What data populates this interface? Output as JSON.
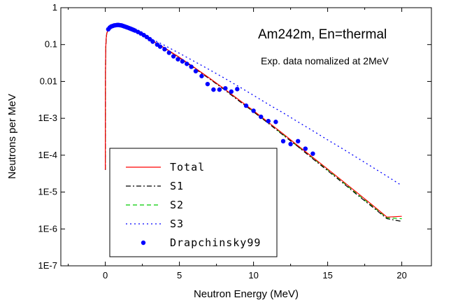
{
  "chart_data": {
    "type": "line",
    "xlabel": "Neutron Energy (MeV)",
    "ylabel": "Neutrons per MeV",
    "xlim": [
      -3,
      22
    ],
    "ylim_log10": [
      -7,
      0
    ],
    "log_y": true,
    "x_ticks": [
      "0",
      "5",
      "10",
      "15",
      "20"
    ],
    "x_tick_values": [
      0,
      5,
      10,
      15,
      20
    ],
    "y_ticks": [
      "1",
      "0.1",
      "0.01",
      "1E-3",
      "1E-4",
      "1E-5",
      "1E-6",
      "1E-7"
    ],
    "y_tick_values": [
      1,
      0.1,
      0.01,
      0.001,
      0.0001,
      1e-05,
      1e-06,
      1e-07
    ],
    "annotations": [
      "Am242m, En=thermal",
      "Exp. data nomalized at 2MeV"
    ],
    "legend_position": "lower-left",
    "series": [
      {
        "name": "Total",
        "style": "solid",
        "color": "#ff0000",
        "x": [
          0.0,
          0.01,
          0.03,
          0.06,
          0.1,
          0.2,
          0.4,
          0.7,
          1.0,
          1.5,
          2,
          3,
          4,
          5,
          6,
          7,
          8,
          9,
          10,
          11,
          12,
          13,
          14,
          15,
          16,
          17,
          18,
          19,
          20
        ],
        "y": [
          4e-05,
          0.012,
          0.08,
          0.15,
          0.2,
          0.26,
          0.31,
          0.33,
          0.32,
          0.28,
          0.23,
          0.14,
          0.081,
          0.045,
          0.024,
          0.0125,
          0.0064,
          0.0032,
          0.0016,
          0.00078,
          0.00038,
          0.00018,
          8.7e-05,
          4.2e-05,
          2e-05,
          9.5e-06,
          4.5e-06,
          2.1e-06,
          2.2e-06
        ]
      },
      {
        "name": "S1",
        "style": "dashdot",
        "color": "#000000",
        "x": [
          0.0,
          0.01,
          0.03,
          0.06,
          0.1,
          0.2,
          0.4,
          0.7,
          1.0,
          1.5,
          2,
          3,
          4,
          5,
          6,
          7,
          8,
          9,
          10,
          11,
          12,
          13,
          14,
          15,
          16,
          17,
          18,
          19,
          20
        ],
        "y": [
          4e-05,
          0.012,
          0.08,
          0.15,
          0.2,
          0.26,
          0.31,
          0.33,
          0.32,
          0.28,
          0.23,
          0.14,
          0.08,
          0.044,
          0.023,
          0.012,
          0.0061,
          0.003,
          0.0015,
          0.00073,
          0.00035,
          0.00017,
          8e-05,
          3.8e-05,
          1.8e-05,
          8.4e-06,
          4e-06,
          1.9e-06,
          1.6e-06
        ]
      },
      {
        "name": "S2",
        "style": "dashed",
        "color": "#00cc00",
        "x": [
          0.0,
          0.01,
          0.03,
          0.06,
          0.1,
          0.2,
          0.4,
          0.7,
          1.0,
          1.5,
          2,
          3,
          4,
          5,
          6,
          7,
          8,
          9,
          10,
          11,
          12,
          13,
          14,
          15,
          16,
          17,
          18,
          19,
          20
        ],
        "y": [
          4e-05,
          0.012,
          0.08,
          0.15,
          0.2,
          0.26,
          0.31,
          0.33,
          0.32,
          0.28,
          0.23,
          0.14,
          0.081,
          0.045,
          0.024,
          0.0124,
          0.0063,
          0.0031,
          0.0015,
          0.00075,
          0.00036,
          0.00017,
          8.3e-05,
          4e-05,
          1.9e-05,
          8.8e-06,
          4.2e-06,
          2e-06,
          1.9e-06
        ]
      },
      {
        "name": "S3",
        "style": "dotted",
        "color": "#0000ff",
        "x": [
          0.0,
          0.01,
          0.03,
          0.06,
          0.1,
          0.2,
          0.4,
          0.7,
          1.0,
          1.5,
          2,
          3,
          4,
          5,
          6,
          7,
          8,
          9,
          10,
          11,
          12,
          13,
          14,
          15,
          16,
          17,
          18,
          19,
          20
        ],
        "y": [
          4e-05,
          0.012,
          0.08,
          0.15,
          0.2,
          0.26,
          0.31,
          0.33,
          0.32,
          0.28,
          0.23,
          0.15,
          0.095,
          0.058,
          0.035,
          0.021,
          0.0125,
          0.0073,
          0.0042,
          0.0024,
          0.0014,
          0.0008,
          0.00046,
          0.00026,
          0.00015,
          8.5e-05,
          4.8e-05,
          2.7e-05,
          1.5e-05
        ]
      },
      {
        "name": "Drapchinsky99",
        "style": "markers",
        "color": "#0000ff",
        "x": [
          0.2,
          0.3,
          0.4,
          0.5,
          0.6,
          0.7,
          0.8,
          0.9,
          1.0,
          1.1,
          1.2,
          1.3,
          1.4,
          1.5,
          1.6,
          1.7,
          1.8,
          1.9,
          2.0,
          2.2,
          2.4,
          2.6,
          2.8,
          3.0,
          3.2,
          3.5,
          3.7,
          4.0,
          4.3,
          4.6,
          4.9,
          5.2,
          5.5,
          5.8,
          6.1,
          6.5,
          6.9,
          7.3,
          7.7,
          8.1,
          8.5,
          8.9,
          9.5,
          10.0,
          10.5,
          11.0,
          11.5,
          12.0,
          12.5,
          13.0,
          13.5,
          14.0
        ],
        "y": [
          0.26,
          0.29,
          0.31,
          0.32,
          0.33,
          0.335,
          0.34,
          0.34,
          0.335,
          0.33,
          0.32,
          0.31,
          0.3,
          0.29,
          0.28,
          0.27,
          0.26,
          0.25,
          0.24,
          0.22,
          0.2,
          0.18,
          0.16,
          0.14,
          0.12,
          0.1,
          0.088,
          0.075,
          0.06,
          0.048,
          0.04,
          0.035,
          0.03,
          0.025,
          0.019,
          0.014,
          0.0085,
          0.006,
          0.006,
          0.0065,
          0.0053,
          0.0062,
          0.0022,
          0.0016,
          0.0011,
          0.00084,
          0.0008,
          0.00024,
          0.0002,
          0.00024,
          0.00015,
          0.00011
        ]
      }
    ]
  }
}
